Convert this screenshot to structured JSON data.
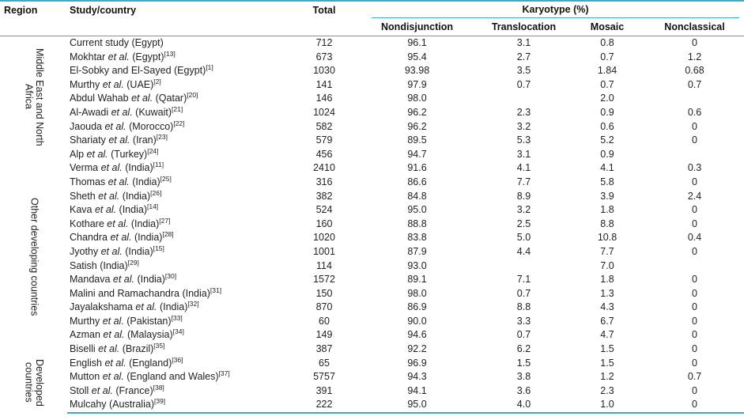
{
  "colors": {
    "border": "#3fa9c9",
    "text": "#222222"
  },
  "table": {
    "headers": {
      "region": "Region",
      "study": "Study/country",
      "total": "Total",
      "karyotype": "Karyotype (%)",
      "karyotype_columns": [
        "Nondisjunction",
        "Translocation",
        "Mosaic",
        "Nonclassical"
      ]
    },
    "regions": [
      {
        "label": "Middle East and North\nAfrica",
        "rows": [
          {
            "pre": "Current study (Egypt)",
            "etal": "",
            "post": "",
            "ref": "",
            "total": "712",
            "nd": "96.1",
            "tr": "3.1",
            "mo": "0.8",
            "nc": "0"
          },
          {
            "pre": "Mokhtar ",
            "etal": "et al.",
            "post": " (Egypt)",
            "ref": "[13]",
            "total": "673",
            "nd": "95.4",
            "tr": "2.7",
            "mo": "0.7",
            "nc": "1.2"
          },
          {
            "pre": "El-Sobky and El-Sayed (Egypt)",
            "etal": "",
            "post": "",
            "ref": "[1]",
            "total": "1030",
            "nd": "93.98",
            "tr": "3.5",
            "mo": "1.84",
            "nc": "0.68"
          },
          {
            "pre": "Murthy ",
            "etal": "et al.",
            "post": " (UAE)",
            "ref": "[2]",
            "total": "141",
            "nd": "97.9",
            "tr": "0.7",
            "mo": "0.7",
            "nc": "0.7"
          },
          {
            "pre": "Abdul Wahab ",
            "etal": "et al.",
            "post": " (Qatar)",
            "ref": "[20]",
            "total": "146",
            "nd": "98.0",
            "tr": "",
            "mo": "2.0",
            "nc": ""
          },
          {
            "pre": "Al-Awadi ",
            "etal": "et al.",
            "post": " (Kuwait)",
            "ref": "[21]",
            "total": "1024",
            "nd": "96.2",
            "tr": "2.3",
            "mo": "0.9",
            "nc": "0.6"
          },
          {
            "pre": "Jaouda ",
            "etal": "et al.",
            "post": " (Morocco)",
            "ref": "[22]",
            "total": "582",
            "nd": "96.2",
            "tr": "3.2",
            "mo": "0.6",
            "nc": "0"
          },
          {
            "pre": "Shariaty ",
            "etal": "et al.",
            "post": " (Iran)",
            "ref": "[23]",
            "total": "579",
            "nd": "89.5",
            "tr": "5.3",
            "mo": "5.2",
            "nc": "0"
          },
          {
            "pre": "Alp ",
            "etal": "et al.",
            "post": " (Turkey)",
            "ref": "[24]",
            "total": "456",
            "nd": "94.7",
            "tr": "3.1",
            "mo": "0.9",
            "nc": ""
          }
        ]
      },
      {
        "label": "Other developing countries",
        "rows": [
          {
            "pre": "Verma ",
            "etal": "et al.",
            "post": " (India)",
            "ref": "[11]",
            "total": "2410",
            "nd": "91.6",
            "tr": "4.1",
            "mo": "4.1",
            "nc": "0.3"
          },
          {
            "pre": "Thomas ",
            "etal": "et al.",
            "post": " (India)",
            "ref": "[25]",
            "total": "316",
            "nd": "86.6",
            "tr": "7.7",
            "mo": "5.8",
            "nc": "0"
          },
          {
            "pre": "Sheth ",
            "etal": "et al.",
            "post": " (India)",
            "ref": "[26]",
            "total": "382",
            "nd": "84.8",
            "tr": "8.9",
            "mo": "3.9",
            "nc": "2.4"
          },
          {
            "pre": "Kava ",
            "etal": "et al.",
            "post": " (India)",
            "ref": "[14]",
            "total": "524",
            "nd": "95.0",
            "tr": "3.2",
            "mo": "1.8",
            "nc": "0"
          },
          {
            "pre": "Kothare ",
            "etal": "et al.",
            "post": " (India)",
            "ref": "[27]",
            "total": "160",
            "nd": "88.8",
            "tr": "2.5",
            "mo": "8.8",
            "nc": "0"
          },
          {
            "pre": "Chandra ",
            "etal": "et al.",
            "post": " (India)",
            "ref": "[28]",
            "total": "1020",
            "nd": "83.8",
            "tr": "5.0",
            "mo": "10.8",
            "nc": "0.4"
          },
          {
            "pre": "Jyothy ",
            "etal": "et al.",
            "post": " (India)",
            "ref": "[15]",
            "total": "1001",
            "nd": "87.9",
            "tr": "4.4",
            "mo": "7.7",
            "nc": "0"
          },
          {
            "pre": "Satish (India)",
            "etal": "",
            "post": "",
            "ref": "[29]",
            "total": "114",
            "nd": "93.0",
            "tr": "",
            "mo": "7.0",
            "nc": ""
          },
          {
            "pre": "Mandava ",
            "etal": "et al.",
            "post": " (India)",
            "ref": "[30]",
            "total": "1572",
            "nd": "89.1",
            "tr": "7.1",
            "mo": "1.8",
            "nc": "0"
          },
          {
            "pre": "Malini and Ramachandra (India)",
            "etal": "",
            "post": "",
            "ref": "[31]",
            "total": "150",
            "nd": "98.0",
            "tr": "0.7",
            "mo": "1.3",
            "nc": "0"
          },
          {
            "pre": "Jayalakshama ",
            "etal": "et al.",
            "post": " (India)",
            "ref": "[32]",
            "total": "870",
            "nd": "86.9",
            "tr": "8.8",
            "mo": "4.3",
            "nc": "0"
          },
          {
            "pre": "Murthy ",
            "etal": "et al.",
            "post": " (Pakistan)",
            "ref": "[33]",
            "total": "60",
            "nd": "90.0",
            "tr": "3.3",
            "mo": "6.7",
            "nc": "0"
          },
          {
            "pre": "Azman ",
            "etal": "et al.",
            "post": " (Malaysia)",
            "ref": "[34]",
            "total": "149",
            "nd": "94.6",
            "tr": "0.7",
            "mo": "4.7",
            "nc": "0"
          },
          {
            "pre": "Biselli ",
            "etal": "et al.",
            "post": " (Brazil)",
            "ref": "[35]",
            "total": "387",
            "nd": "92.2",
            "tr": "6.2",
            "mo": "1.5",
            "nc": "0"
          }
        ]
      },
      {
        "label": "Developed\ncountries",
        "rows": [
          {
            "pre": "English ",
            "etal": "et al.",
            "post": " (England)",
            "ref": "[36]",
            "total": "65",
            "nd": "96.9",
            "tr": "1.5",
            "mo": "1.5",
            "nc": "0"
          },
          {
            "pre": "Mutton ",
            "etal": "et al.",
            "post": " (England and Wales)",
            "ref": "[37]",
            "total": "5757",
            "nd": "94.3",
            "tr": "3.8",
            "mo": "1.2",
            "nc": "0.7"
          },
          {
            "pre": "Stoll ",
            "etal": "et al.",
            "post": " (France)",
            "ref": "[38]",
            "total": "391",
            "nd": "94.1",
            "tr": "3.6",
            "mo": "2.3",
            "nc": "0"
          },
          {
            "pre": "Mulcahy (Australia)",
            "etal": "",
            "post": "",
            "ref": "[39]",
            "total": "222",
            "nd": "95.0",
            "tr": "4.0",
            "mo": "1.0",
            "nc": "0"
          }
        ]
      }
    ]
  }
}
